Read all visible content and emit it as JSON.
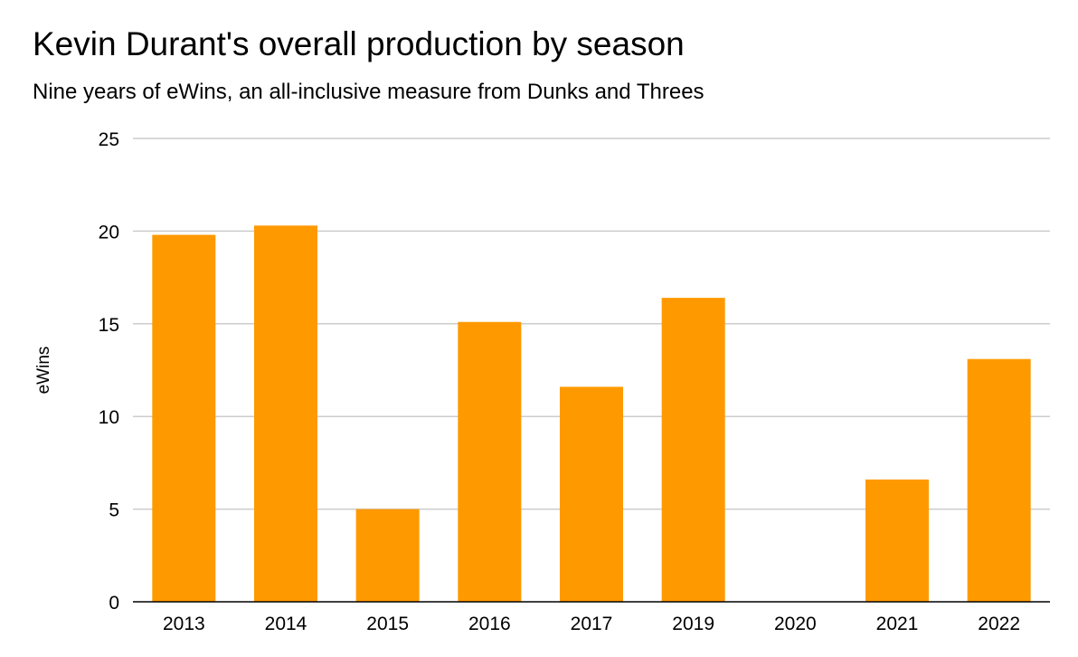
{
  "chart_data": {
    "type": "bar",
    "title": "Kevin Durant's overall production by season",
    "subtitle": "Nine years of eWins, an all-inclusive measure from Dunks and Threes",
    "xlabel": "",
    "ylabel": "eWins",
    "categories": [
      "2013",
      "2014",
      "2015",
      "2016",
      "2017",
      "2019",
      "2020",
      "2021",
      "2022"
    ],
    "values": [
      19.8,
      20.3,
      5.0,
      15.1,
      11.6,
      16.4,
      0,
      6.6,
      13.1
    ],
    "ylim": [
      0,
      25
    ],
    "yticks": [
      "0",
      "5",
      "10",
      "15",
      "20",
      "25"
    ],
    "grid": true,
    "legend": "none",
    "colors": {
      "bar": "#ff9900",
      "grid": "#cccccc",
      "axis": "#000000"
    }
  }
}
